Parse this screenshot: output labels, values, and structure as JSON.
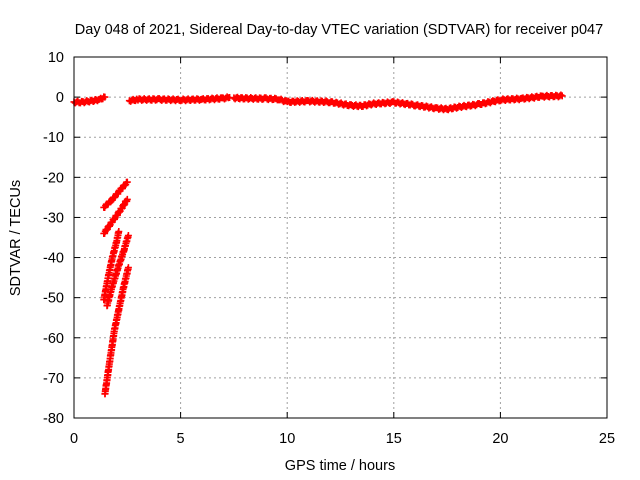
{
  "chart_data": {
    "type": "scatter",
    "title": "Day 048 of 2021, Sidereal Day-to-day VTEC variation (SDTVAR) for receiver p047",
    "xlabel": "GPS time / hours",
    "ylabel": "SDTVAR / TECUs",
    "xlim": [
      0,
      25
    ],
    "ylim": [
      -80,
      10
    ],
    "xticks": [
      "0",
      "5",
      "10",
      "15",
      "20",
      "25"
    ],
    "yticks": [
      "10",
      "0",
      "-10",
      "-20",
      "-30",
      "-40",
      "-50",
      "-60",
      "-70",
      "-80"
    ],
    "grid": true,
    "marker": "+",
    "series": [
      {
        "name": "SDTVAR",
        "color": "#ff0000",
        "segments": [
          {
            "x": [
              0.0,
              0.3,
              0.6,
              0.9,
              1.2,
              1.45
            ],
            "y": [
              -1.2,
              -1.3,
              -1.1,
              -0.9,
              -0.6,
              0.0
            ]
          },
          {
            "x": [
              2.6,
              3.0,
              4.0,
              5.0,
              6.0,
              7.0,
              7.3
            ],
            "y": [
              -0.9,
              -0.6,
              -0.6,
              -0.7,
              -0.6,
              -0.3,
              -0.1
            ]
          },
          {
            "x": [
              7.5,
              8.0,
              9.0,
              9.6,
              10.0,
              11.0,
              12.0,
              13.0,
              13.5,
              14.0,
              15.0,
              16.0,
              17.0,
              17.5,
              18.0,
              19.0,
              20.0,
              21.0,
              22.0,
              22.9
            ],
            "y": [
              -0.2,
              -0.3,
              -0.4,
              -0.5,
              -1.2,
              -1.0,
              -1.2,
              -2.1,
              -2.2,
              -1.7,
              -1.3,
              -2.0,
              -2.8,
              -3.0,
              -2.5,
              -1.8,
              -0.7,
              -0.4,
              0.2,
              0.3
            ]
          },
          {
            "x": [
              1.4,
              1.8,
              2.2,
              2.5
            ],
            "y": [
              -27.5,
              -25.5,
              -23.0,
              -21.2
            ]
          },
          {
            "x": [
              1.4,
              1.8,
              2.2,
              2.5
            ],
            "y": [
              -34.0,
              -31.0,
              -28.0,
              -25.5
            ]
          },
          {
            "x": [
              1.4,
              1.6,
              1.8,
              2.0,
              2.1
            ],
            "y": [
              -50.5,
              -45.0,
              -40.0,
              -36.0,
              -33.5
            ]
          },
          {
            "x": [
              1.55,
              1.8,
              2.1,
              2.35,
              2.55
            ],
            "y": [
              -52.0,
              -47.0,
              -42.0,
              -38.0,
              -34.5
            ]
          },
          {
            "x": [
              1.45,
              1.7,
              1.9,
              2.1,
              2.3,
              2.55
            ],
            "y": [
              -74.0,
              -65.0,
              -58.0,
              -53.0,
              -48.0,
              -42.5
            ]
          }
        ]
      }
    ]
  }
}
